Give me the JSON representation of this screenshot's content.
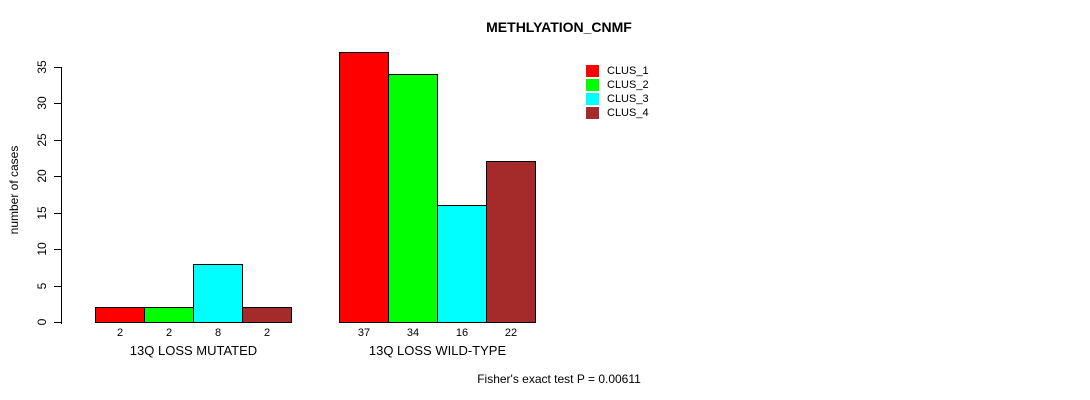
{
  "chart_data": {
    "type": "bar",
    "title": "METHLYATION_CNMF",
    "ylabel": "number of cases",
    "xlabel": "",
    "ylim": [
      0,
      37
    ],
    "yticks": [
      0,
      5,
      10,
      15,
      20,
      25,
      30,
      35
    ],
    "grid": false,
    "legend_position": "top-right",
    "categories": [
      "13Q LOSS MUTATED",
      "13Q LOSS WILD-TYPE"
    ],
    "series": [
      {
        "name": "CLUS_1",
        "color": "#FF0000",
        "values": [
          2,
          37
        ]
      },
      {
        "name": "CLUS_2",
        "color": "#00FF00",
        "values": [
          2,
          34
        ]
      },
      {
        "name": "CLUS_3",
        "color": "#00FFFF",
        "values": [
          8,
          16
        ]
      },
      {
        "name": "CLUS_4",
        "color": "#A52A2A",
        "values": [
          2,
          22
        ]
      }
    ],
    "bar_value_labels": [
      [
        2,
        2,
        8,
        2
      ],
      [
        37,
        34,
        16,
        22
      ]
    ],
    "annotation": "Fisher's exact test P = 0.00611"
  }
}
